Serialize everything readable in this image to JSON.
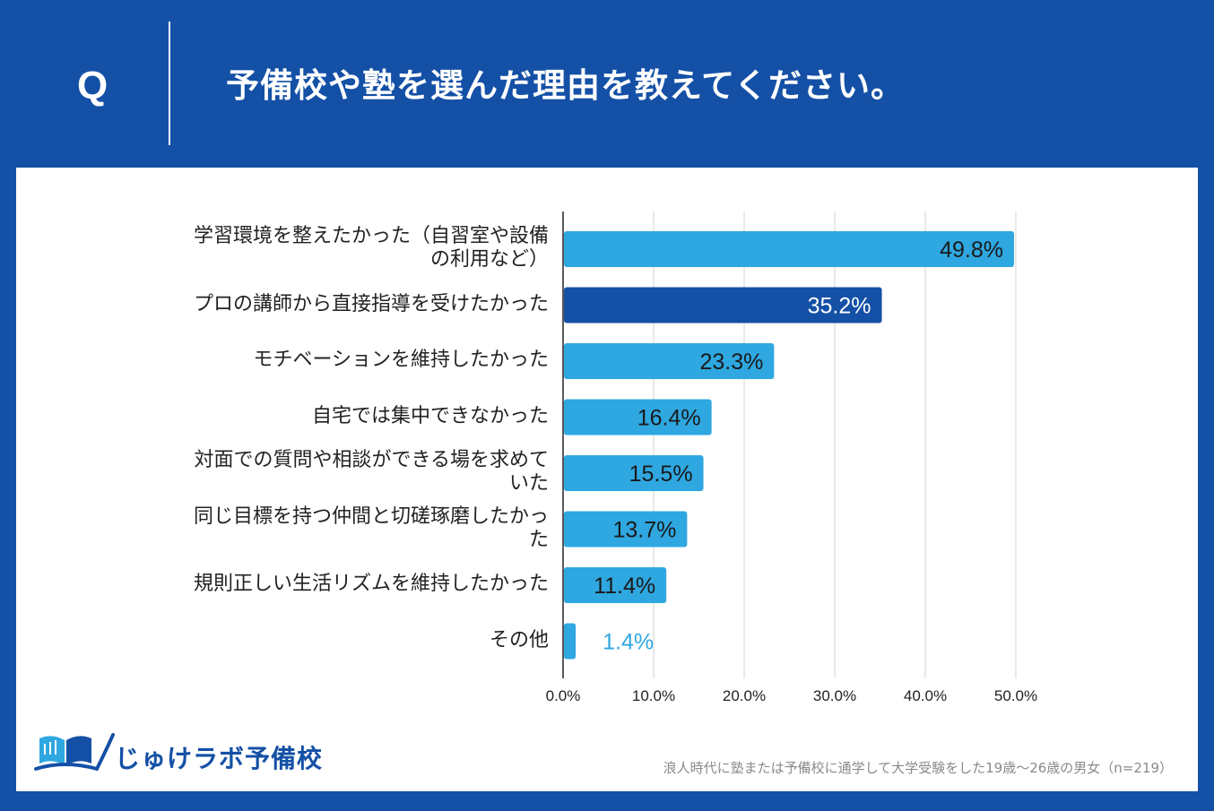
{
  "header": {
    "q_mark": "Q",
    "question": "予備校や塾を選んだ理由を教えてください。"
  },
  "colors": {
    "background": "#1450a6",
    "bar": "#2fa7e0",
    "bar_highlight": "#1450a6",
    "grid": "#d3d3d3"
  },
  "chart_data": {
    "type": "bar",
    "orientation": "horizontal",
    "title": "予備校や塾を選んだ理由を教えてください。",
    "categories": [
      [
        "学習環境を整えたかった（自習室や設備",
        "の利用など）"
      ],
      [
        "プロの講師から直接指導を受けたかった"
      ],
      [
        "モチベーションを維持したかった"
      ],
      [
        "自宅では集中できなかった"
      ],
      [
        "対面での質問や相談ができる場を求めて",
        "いた"
      ],
      [
        "同じ目標を持つ仲間と切磋琢磨したかっ",
        "た"
      ],
      [
        "規則正しい生活リズムを維持したかった"
      ],
      [
        "その他"
      ]
    ],
    "values": [
      49.8,
      35.2,
      23.3,
      16.4,
      15.5,
      13.7,
      11.4,
      1.4
    ],
    "value_labels": [
      "49.8%",
      "35.2%",
      "23.3%",
      "16.4%",
      "15.5%",
      "13.7%",
      "11.4%",
      "1.4%"
    ],
    "highlight_index": 1,
    "xlim": [
      0,
      50
    ],
    "ticks": [
      "0.0%",
      "10.0%",
      "20.0%",
      "30.0%",
      "40.0%",
      "50.0%"
    ],
    "tick_values": [
      0,
      10,
      20,
      30,
      40,
      50
    ],
    "grid": true
  },
  "footer": {
    "brand": "じゅけラボ予備校",
    "note": "浪人時代に塾または予備校に通学して大学受験をした19歳〜26歳の男女（n=219）"
  }
}
